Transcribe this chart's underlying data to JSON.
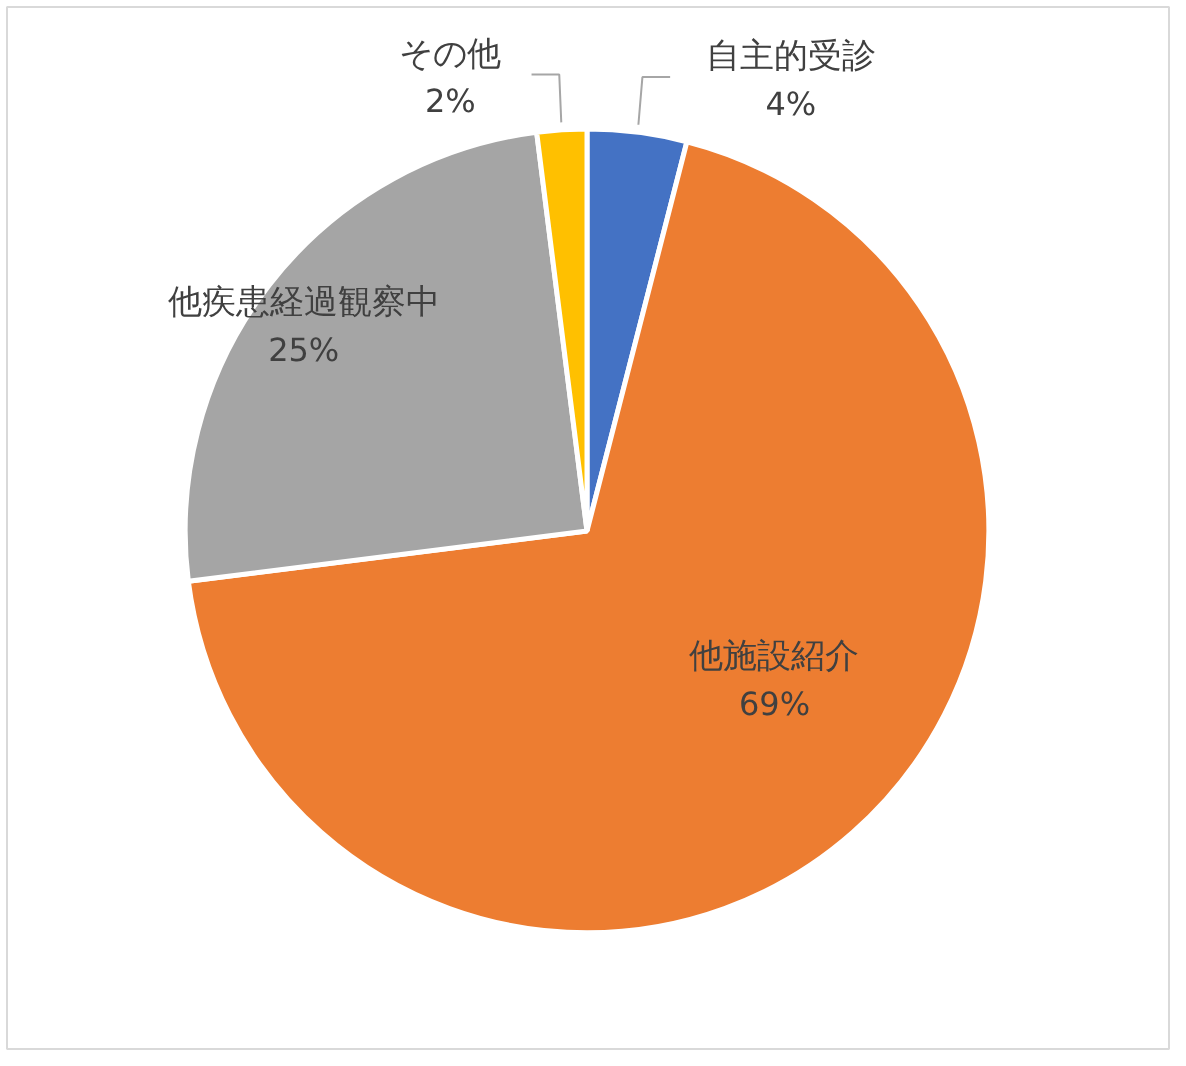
{
  "chart_data": {
    "type": "pie",
    "categories": [
      "自主的受診",
      "他施設紹介",
      "他疾患経過観察中",
      "その他"
    ],
    "values": [
      4,
      69,
      25,
      2
    ],
    "value_labels": [
      "4%",
      "69%",
      "25%",
      "2%"
    ],
    "colors": [
      "#4472c4",
      "#ed7d31",
      "#a5a5a5",
      "#ffc000"
    ],
    "legend": false
  }
}
